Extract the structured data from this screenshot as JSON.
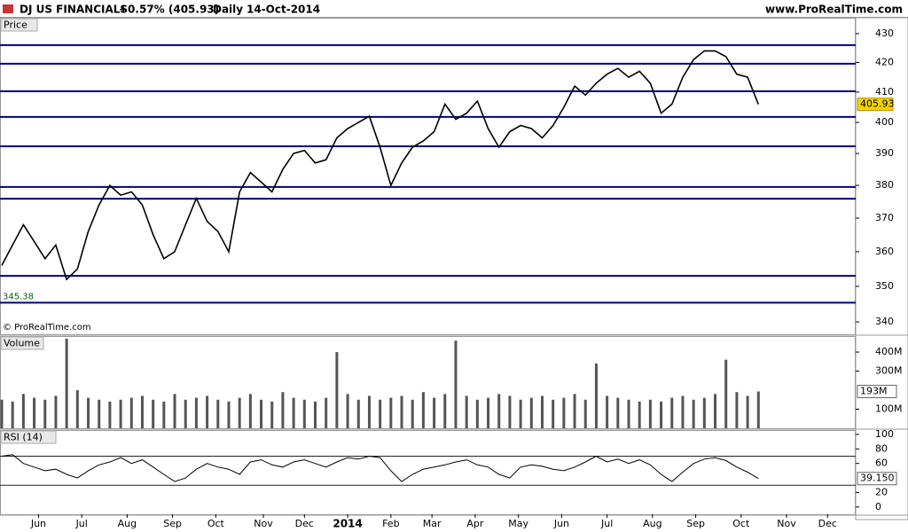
{
  "header": {
    "title": "DJ US FINANCIALS",
    "change": "+0.57% (405.93)",
    "period": "Daily",
    "date": "14-Oct-2014",
    "site": "www.ProRealTime.com"
  },
  "chart_data": [
    {
      "type": "line",
      "title": "Price",
      "annotation": "© ProRealTime.com",
      "log": true,
      "color": "#000000",
      "xlim": [
        0,
        395
      ],
      "x": [
        0,
        5,
        10,
        15,
        20,
        25,
        30,
        35,
        40,
        45,
        50,
        55,
        60,
        65,
        70,
        75,
        80,
        85,
        90,
        95,
        100,
        105,
        110,
        115,
        120,
        125,
        130,
        135,
        140,
        145,
        150,
        155,
        160,
        165,
        170,
        175,
        180,
        185,
        190,
        195,
        200,
        205,
        210,
        215,
        220,
        225,
        230,
        235,
        240,
        245,
        250,
        255,
        260,
        265,
        270,
        275,
        280,
        285,
        290,
        295,
        300,
        305,
        310,
        315,
        320,
        325,
        330,
        335,
        340,
        345,
        350
      ],
      "values": [
        356,
        362,
        368,
        363,
        358,
        362,
        352,
        355,
        366,
        374,
        380,
        377,
        378,
        374,
        365,
        358,
        360,
        368,
        376,
        369,
        366,
        360,
        378,
        384,
        381,
        378,
        385,
        390,
        391,
        387,
        388,
        395,
        398,
        400,
        402,
        392,
        380,
        387,
        392,
        394,
        397,
        406,
        401,
        403,
        407,
        398,
        392,
        397,
        399,
        398,
        395,
        399,
        405,
        412,
        409,
        413,
        416,
        418,
        415,
        417,
        413,
        403,
        406,
        415,
        421,
        424,
        424,
        422,
        416,
        415,
        405.93
      ],
      "ylim": [
        336.6,
        435.6
      ],
      "yticks": [
        340,
        350,
        360,
        370,
        380,
        390,
        400,
        410,
        420,
        430
      ],
      "levels": [
        426.0,
        419.6,
        410.3,
        401.8,
        392.3,
        379.5,
        375.9,
        353.0,
        345.38
      ],
      "level_color": "#000080"
    },
    {
      "type": "bar",
      "title": "Volume",
      "color": "#555555",
      "xlim": [
        0,
        395
      ],
      "x": [
        0,
        5,
        10,
        15,
        20,
        25,
        30,
        35,
        40,
        45,
        50,
        55,
        60,
        65,
        70,
        75,
        80,
        85,
        90,
        95,
        100,
        105,
        110,
        115,
        120,
        125,
        130,
        135,
        140,
        145,
        150,
        155,
        160,
        165,
        170,
        175,
        180,
        185,
        190,
        195,
        200,
        205,
        210,
        215,
        220,
        225,
        230,
        235,
        240,
        245,
        250,
        255,
        260,
        265,
        270,
        275,
        280,
        285,
        290,
        295,
        300,
        305,
        310,
        315,
        320,
        325,
        330,
        335,
        340,
        345,
        350
      ],
      "values": [
        150000000.0,
        140000000.0,
        180000000.0,
        160000000.0,
        150000000.0,
        170000000.0,
        470000000.0,
        200000000.0,
        160000000.0,
        150000000.0,
        140000000.0,
        150000000.0,
        160000000.0,
        170000000.0,
        150000000.0,
        140000000.0,
        180000000.0,
        150000000.0,
        160000000.0,
        170000000.0,
        150000000.0,
        140000000.0,
        160000000.0,
        180000000.0,
        150000000.0,
        140000000.0,
        190000000.0,
        160000000.0,
        150000000.0,
        140000000.0,
        160000000.0,
        400000000.0,
        180000000.0,
        150000000.0,
        170000000.0,
        150000000.0,
        160000000.0,
        170000000.0,
        150000000.0,
        190000000.0,
        160000000.0,
        180000000.0,
        460000000.0,
        170000000.0,
        150000000.0,
        160000000.0,
        180000000.0,
        170000000.0,
        150000000.0,
        160000000.0,
        170000000.0,
        150000000.0,
        160000000.0,
        180000000.0,
        150000000.0,
        340000000.0,
        170000000.0,
        160000000.0,
        150000000.0,
        140000000.0,
        150000000.0,
        140000000.0,
        160000000.0,
        170000000.0,
        150000000.0,
        160000000.0,
        180000000.0,
        360000000.0,
        190000000.0,
        170000000.0,
        193000000.0
      ],
      "ylim": [
        0,
        484000000.0
      ],
      "yticks": [
        {
          "value": 100000000.0,
          "label": "100M"
        },
        {
          "value": 300000000.0,
          "label": "300M"
        },
        {
          "value": 400000000.0,
          "label": "400M"
        }
      ],
      "current": {
        "value": 193000000.0,
        "label": "193M"
      }
    },
    {
      "type": "line",
      "title": "RSI (14)",
      "color": "#000000",
      "xlim": [
        0,
        395
      ],
      "x": [
        0,
        5,
        10,
        15,
        20,
        25,
        30,
        35,
        40,
        45,
        50,
        55,
        60,
        65,
        70,
        75,
        80,
        85,
        90,
        95,
        100,
        105,
        110,
        115,
        120,
        125,
        130,
        135,
        140,
        145,
        150,
        155,
        160,
        165,
        170,
        175,
        180,
        185,
        190,
        195,
        200,
        205,
        210,
        215,
        220,
        225,
        230,
        235,
        240,
        245,
        250,
        255,
        260,
        265,
        270,
        275,
        280,
        285,
        290,
        295,
        300,
        305,
        310,
        315,
        320,
        325,
        330,
        335,
        340,
        345,
        350
      ],
      "values": [
        70,
        72,
        60,
        55,
        50,
        52,
        45,
        40,
        50,
        58,
        62,
        68,
        60,
        65,
        55,
        45,
        35,
        40,
        52,
        60,
        55,
        52,
        45,
        62,
        65,
        58,
        55,
        62,
        65,
        60,
        55,
        62,
        68,
        66,
        70,
        68,
        50,
        35,
        45,
        52,
        55,
        58,
        62,
        65,
        58,
        55,
        45,
        40,
        55,
        58,
        56,
        52,
        50,
        55,
        62,
        70,
        62,
        66,
        60,
        65,
        58,
        45,
        35,
        48,
        60,
        66,
        68,
        64,
        55,
        48,
        39.15
      ],
      "ylim": [
        -10,
        106
      ],
      "yticks": [
        0,
        20,
        60,
        80,
        100
      ],
      "levels": [
        70,
        30
      ],
      "level_color": "#222222",
      "current": {
        "value": 39.15,
        "label": "39.150"
      },
      "xticks": [
        {
          "value": 17,
          "label": "Jun"
        },
        {
          "value": 37,
          "label": "Jul"
        },
        {
          "value": 58,
          "label": "Aug"
        },
        {
          "value": 79,
          "label": "Sep"
        },
        {
          "value": 99,
          "label": "Oct"
        },
        {
          "value": 121,
          "label": "Nov"
        },
        {
          "value": 140,
          "label": "Dec"
        },
        {
          "value": 160,
          "label": "2014"
        },
        {
          "value": 180,
          "label": "Feb"
        },
        {
          "value": 199,
          "label": "Mar"
        },
        {
          "value": 219,
          "label": "Apr"
        },
        {
          "value": 239,
          "label": "May"
        },
        {
          "value": 259,
          "label": "Jun"
        },
        {
          "value": 280,
          "label": "Jul"
        },
        {
          "value": 301,
          "label": "Aug"
        },
        {
          "value": 321,
          "label": "Sep"
        },
        {
          "value": 342,
          "label": "Oct"
        },
        {
          "value": 363,
          "label": "Nov"
        },
        {
          "value": 382,
          "label": "Dec"
        }
      ]
    }
  ]
}
